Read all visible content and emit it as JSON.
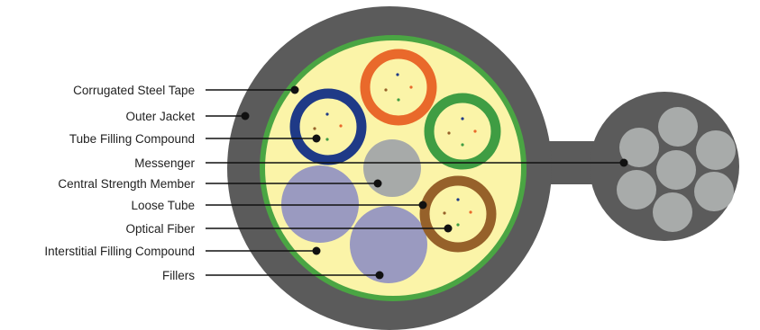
{
  "labels": [
    "Corrugated Steel Tape",
    "Outer Jacket",
    "Tube Filling Compound",
    "Messenger",
    "Central Strength Member",
    "Loose Tube",
    "Optical Fiber",
    "Interstitial Filling Compound",
    "Fillers"
  ],
  "colors": {
    "jacket": "#5b5b5b",
    "steel_tape": "#4aa543",
    "filling_compound": "#fbf4a8",
    "filler": "#9a9ac0",
    "strength_member": "#a7aaa9",
    "messenger_wire": "#a8abaa",
    "tube_orange": "#e9692b",
    "tube_navy": "#1f3a87",
    "tube_green": "#3f9d43",
    "tube_brown": "#96612a",
    "leader": "#111111"
  },
  "fiber_dot_colors": [
    "#1f3a87",
    "#e9692b",
    "#96612a",
    "#3f9d43"
  ]
}
